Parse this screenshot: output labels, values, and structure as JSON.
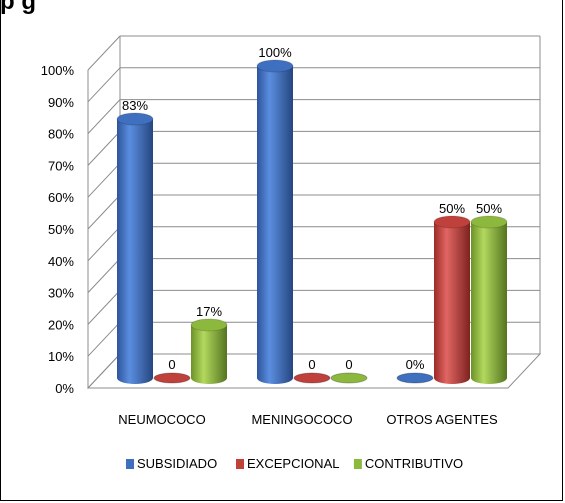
{
  "title_fragment": "p        g",
  "chart_data": {
    "type": "bar",
    "title": "",
    "xlabel": "",
    "ylabel": "",
    "ylim": [
      0,
      100
    ],
    "yticks": [
      "0%",
      "10%",
      "20%",
      "30%",
      "40%",
      "50%",
      "60%",
      "70%",
      "80%",
      "90%",
      "100%"
    ],
    "categories": [
      "NEUMOCOCO",
      "MENINGOCOCO",
      "OTROS AGENTES"
    ],
    "series": [
      {
        "name": "SUBSIDIADO",
        "values": [
          83,
          100,
          0
        ],
        "labels": [
          "83%",
          "100%",
          "0%"
        ],
        "color": "#3f6fbf"
      },
      {
        "name": "EXCEPCIONAL",
        "values": [
          0,
          0,
          50
        ],
        "labels": [
          "0",
          "0",
          "50%"
        ],
        "color": "#c0403c"
      },
      {
        "name": "CONTRIBUTIVO",
        "values": [
          17,
          0,
          50
        ],
        "labels": [
          "17%",
          "0",
          "50%"
        ],
        "color": "#8db83e"
      }
    ],
    "grid": true,
    "legend_position": "bottom"
  }
}
